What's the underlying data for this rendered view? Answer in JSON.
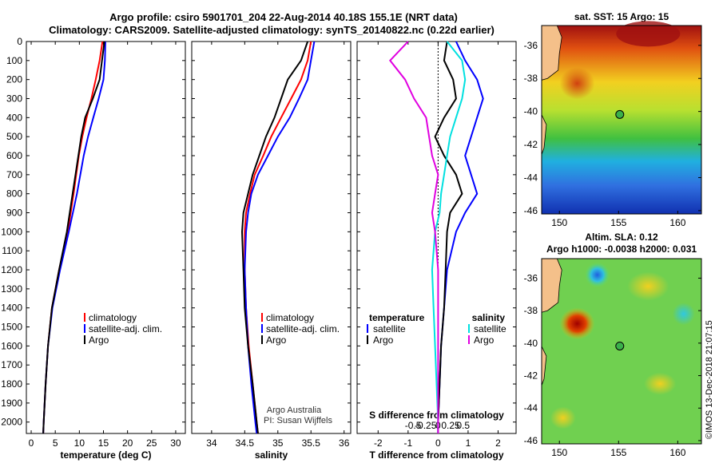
{
  "title_line1": "Argo profile: csiro 5901701_204 22-Aug-2014 40.18S 155.1E (NRT data)",
  "title_line2": "Climatology: CARS2009. Satellite-adjusted climatology: synTS_20140822.nc (0.22d earlier)",
  "footer_stamp": "©IMOS 13-Dec-2018 21:07:15",
  "credit": {
    "line1": "Argo Australia",
    "line2": "PI: Susan Wijffels"
  },
  "colors": {
    "climatology": "#ff0000",
    "satellite": "#0000ff",
    "argo": "#000000",
    "sat_s": "#00e0e0",
    "argo_s": "#e000e0"
  },
  "chart_data": [
    {
      "type": "line",
      "id": "temperature",
      "xlabel": "temperature (deg C)",
      "ylabel": "",
      "xlim": [
        -1,
        32
      ],
      "ylim": [
        2060,
        0
      ],
      "xticks": [
        0,
        5,
        10,
        15,
        20,
        25,
        30
      ],
      "yticks": [
        0,
        100,
        200,
        300,
        400,
        500,
        600,
        700,
        800,
        900,
        1000,
        1100,
        1200,
        1300,
        1400,
        1500,
        1600,
        1700,
        1800,
        1900,
        2000
      ],
      "legend": [
        "climatology",
        "satellite-adj. clim.",
        "Argo"
      ],
      "depth": [
        0,
        100,
        200,
        300,
        400,
        500,
        600,
        800,
        1000,
        1200,
        1400,
        1600,
        1800,
        2000,
        2060
      ],
      "series": [
        {
          "name": "climatology",
          "values": [
            14.8,
            14.2,
            13.4,
            12.5,
            11.5,
            10.6,
            9.9,
            8.8,
            7.6,
            5.8,
            4.3,
            3.5,
            3.0,
            2.6,
            2.5
          ]
        },
        {
          "name": "satellite-adj. clim.",
          "values": [
            15.4,
            15.3,
            15.0,
            14.0,
            12.9,
            11.8,
            10.9,
            9.5,
            7.8,
            6.0,
            4.4,
            3.5,
            3.0,
            2.6,
            2.5
          ]
        },
        {
          "name": "Argo",
          "values": [
            15.2,
            14.7,
            14.2,
            12.8,
            11.2,
            10.4,
            9.8,
            8.6,
            7.4,
            5.8,
            4.3,
            3.5,
            3.0,
            2.6,
            2.5
          ]
        }
      ]
    },
    {
      "type": "line",
      "id": "salinity",
      "xlabel": "salinity",
      "ylabel": "",
      "xlim": [
        33.7,
        36.1
      ],
      "ylim": [
        2060,
        0
      ],
      "xticks": [
        34,
        34.5,
        35,
        35.5,
        36
      ],
      "xticklabels": [
        "34",
        "34.5",
        "35",
        "35.5",
        "36"
      ],
      "legend": [
        "climatology",
        "satellite-adj. clim.",
        "Argo"
      ],
      "depth": [
        0,
        100,
        200,
        300,
        400,
        500,
        600,
        700,
        800,
        900,
        1000,
        1200,
        1400,
        1600,
        1800,
        2000,
        2060
      ],
      "series": [
        {
          "name": "climatology",
          "values": [
            35.5,
            35.45,
            35.35,
            35.2,
            35.05,
            34.9,
            34.78,
            34.65,
            34.58,
            34.52,
            34.5,
            34.5,
            34.52,
            34.56,
            34.62,
            34.68,
            34.7
          ]
        },
        {
          "name": "satellite-adj. clim.",
          "values": [
            35.55,
            35.5,
            35.45,
            35.32,
            35.18,
            35.0,
            34.85,
            34.7,
            34.6,
            34.55,
            34.52,
            34.5,
            34.52,
            34.55,
            34.6,
            34.66,
            34.68
          ]
        },
        {
          "name": "Argo",
          "values": [
            35.45,
            35.35,
            35.15,
            35.05,
            34.95,
            34.82,
            34.72,
            34.62,
            34.55,
            34.48,
            34.46,
            34.48,
            34.5,
            34.55,
            34.62,
            34.68,
            34.7
          ]
        }
      ]
    },
    {
      "type": "line",
      "id": "difference",
      "xlabel": "T difference from climatology",
      "xlabel2": "S difference from climatology",
      "xlim": [
        -2.7,
        2.6
      ],
      "ylim": [
        2060,
        0
      ],
      "xticks": [
        -2,
        -1,
        0,
        1,
        2
      ],
      "xticklabels": [
        "-2",
        "-1",
        "0",
        "1",
        "2"
      ],
      "sticks": [
        -0.5,
        -0.25,
        0,
        0.25,
        0.5
      ],
      "sticklabels": [
        "-0.5",
        "-0.25",
        "0",
        "0.25",
        "0.5"
      ],
      "legend_left_title": "temperature",
      "legend_right_title": "salinity",
      "legend_left": [
        "satellite",
        "Argo"
      ],
      "legend_right": [
        "satellite",
        "Argo"
      ],
      "depth": [
        0,
        100,
        200,
        300,
        400,
        500,
        600,
        700,
        800,
        900,
        1000,
        1200,
        1400,
        1600,
        1800,
        2000,
        2060
      ],
      "series": [
        {
          "name": "T satellite",
          "values": [
            0.6,
            0.9,
            1.3,
            1.5,
            1.3,
            1.1,
            0.9,
            1.1,
            1.3,
            0.9,
            0.6,
            0.3,
            0.2,
            0.1,
            0.05,
            0.0,
            0.0
          ]
        },
        {
          "name": "T Argo",
          "values": [
            0.3,
            0.2,
            0.5,
            0.6,
            0.2,
            -0.1,
            0.2,
            0.6,
            0.8,
            0.4,
            0.3,
            0.25,
            0.2,
            0.1,
            0.05,
            0.0,
            0.0
          ]
        },
        {
          "name": "S satellite",
          "values": [
            0.3,
            0.8,
            0.9,
            0.8,
            0.6,
            0.4,
            0.3,
            0.2,
            0.1,
            0.05,
            -0.1,
            -0.2,
            -0.15,
            -0.1,
            -0.05,
            0.0,
            0.0
          ]
        },
        {
          "name": "S Argo",
          "values": [
            -1.0,
            -1.6,
            -1.1,
            -0.8,
            -0.4,
            -0.3,
            -0.2,
            0.0,
            -0.1,
            -0.2,
            -0.1,
            0.0,
            0.0,
            0.0,
            0.0,
            0.0,
            0.0
          ]
        }
      ]
    },
    {
      "type": "heatmap",
      "id": "sst_map",
      "title": "sat. SST: 15 Argo: 15",
      "xticks": [
        150,
        155,
        160
      ],
      "yticks": [
        -36,
        -38,
        -40,
        -42,
        -44,
        -46
      ],
      "xlim": [
        148.5,
        162
      ],
      "ylim": [
        -46.2,
        -34.8
      ],
      "marker": {
        "lon": 155.1,
        "lat": -40.18
      }
    },
    {
      "type": "heatmap",
      "id": "sla_map",
      "title": "Altim. SLA: 0.12",
      "subtitle": "Argo h1000: -0.0038 h2000: 0.031",
      "xticks": [
        150,
        155,
        160
      ],
      "yticks": [
        -36,
        -38,
        -40,
        -42,
        -44,
        -46
      ],
      "xlim": [
        148.5,
        162
      ],
      "ylim": [
        -46.2,
        -34.8
      ],
      "marker": {
        "lon": 155.1,
        "lat": -40.18
      }
    }
  ]
}
